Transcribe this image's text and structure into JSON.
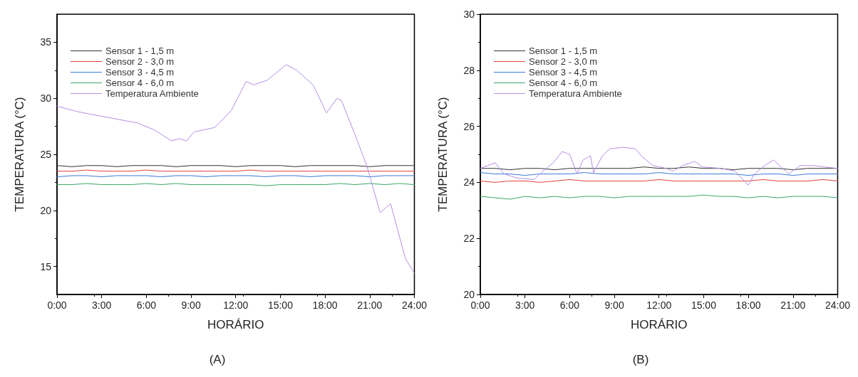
{
  "chart_data": [
    {
      "type": "line",
      "xlabel": "HORÁRIO",
      "ylabel": "TEMPERATURA (°C)",
      "annotations": [
        "(A)"
      ],
      "xlim": [
        0,
        24
      ],
      "ylim": [
        12.5,
        37.5
      ],
      "yticks": [
        15,
        20,
        25,
        30,
        35
      ],
      "xticks": [
        {
          "value": 0,
          "label": "0:00"
        },
        {
          "value": 3,
          "label": "3:00"
        },
        {
          "value": 6,
          "label": "6:00"
        },
        {
          "value": 9,
          "label": "9:00"
        },
        {
          "value": 12,
          "label": "12:00"
        },
        {
          "value": 15,
          "label": "15:00"
        },
        {
          "value": 18,
          "label": "18:00"
        },
        {
          "value": 21,
          "label": "21:00"
        },
        {
          "value": 24,
          "label": "24:00"
        }
      ],
      "grid": false,
      "legend": "top left",
      "marker": "none",
      "line_style": "solid",
      "x": [
        0,
        1,
        2,
        3,
        4,
        5,
        6,
        7,
        8,
        9,
        10,
        11,
        12,
        13,
        14,
        15,
        16,
        17,
        18,
        19,
        20,
        21,
        22,
        23,
        24
      ],
      "series": [
        {
          "name": "Sensor 1 - 1,5 m",
          "color": "#333333",
          "values": [
            24.0,
            23.9,
            24.0,
            24.0,
            23.9,
            24.0,
            24.0,
            24.0,
            23.9,
            24.0,
            24.0,
            24.0,
            23.9,
            24.0,
            24.0,
            24.0,
            23.9,
            24.0,
            24.0,
            24.0,
            24.0,
            23.9,
            24.0,
            24.0,
            24.0
          ]
        },
        {
          "name": "Sensor 2 - 3,0 m",
          "color": "#e0413c",
          "values": [
            23.5,
            23.5,
            23.6,
            23.5,
            23.5,
            23.5,
            23.6,
            23.5,
            23.5,
            23.5,
            23.5,
            23.5,
            23.5,
            23.6,
            23.5,
            23.5,
            23.5,
            23.5,
            23.5,
            23.5,
            23.5,
            23.5,
            23.5,
            23.5,
            23.5
          ]
        },
        {
          "name": "Sensor 3 - 4,5 m",
          "color": "#3b78d8",
          "values": [
            23.0,
            23.1,
            23.1,
            23.0,
            23.1,
            23.1,
            23.1,
            23.0,
            23.1,
            23.1,
            23.0,
            23.1,
            23.1,
            23.1,
            23.0,
            23.1,
            23.1,
            23.0,
            23.1,
            23.1,
            23.1,
            23.0,
            23.1,
            23.1,
            23.1
          ]
        },
        {
          "name": "Sensor 4 - 6,0 m",
          "color": "#3aa66a",
          "values": [
            22.3,
            22.3,
            22.4,
            22.3,
            22.3,
            22.3,
            22.4,
            22.3,
            22.4,
            22.3,
            22.3,
            22.3,
            22.3,
            22.3,
            22.2,
            22.3,
            22.3,
            22.3,
            22.3,
            22.4,
            22.3,
            22.4,
            22.3,
            22.4,
            22.3
          ]
        },
        {
          "name": "Temperatura Ambiente",
          "color": "#b48ee0",
          "x": [
            0,
            1.4,
            5.4,
            6.5,
            7.7,
            8.2,
            8.7,
            9.2,
            10.6,
            11.7,
            12.7,
            13.2,
            14.1,
            15.4,
            16.1,
            17.2,
            18.1,
            18.8,
            19.1,
            20.0,
            20.8,
            21.1,
            21.7,
            22.4,
            23.4,
            24
          ],
          "values": [
            29.3,
            28.8,
            27.8,
            27.2,
            26.2,
            26.4,
            26.2,
            27.0,
            27.4,
            28.9,
            31.5,
            31.2,
            31.6,
            33.0,
            32.5,
            31.2,
            28.7,
            30.0,
            29.8,
            26.8,
            24.0,
            22.6,
            19.8,
            20.6,
            15.7,
            14.4
          ]
        }
      ]
    },
    {
      "type": "line",
      "xlabel": "HORÁRIO",
      "ylabel": "TEMPERATURA (°C)",
      "annotations": [
        "(B)"
      ],
      "xlim": [
        0,
        24
      ],
      "ylim": [
        20,
        30
      ],
      "yticks": [
        20,
        22,
        24,
        26,
        28,
        30
      ],
      "xticks": [
        {
          "value": 0,
          "label": "0:00"
        },
        {
          "value": 3,
          "label": "3:00"
        },
        {
          "value": 6,
          "label": "6:00"
        },
        {
          "value": 9,
          "label": "9:00"
        },
        {
          "value": 12,
          "label": "12:00"
        },
        {
          "value": 15,
          "label": "15:00"
        },
        {
          "value": 18,
          "label": "18:00"
        },
        {
          "value": 21,
          "label": "21:00"
        },
        {
          "value": 24,
          "label": "24:00"
        }
      ],
      "grid": false,
      "legend": "top left",
      "marker": "none",
      "line_style": "solid",
      "x": [
        0,
        1,
        2,
        3,
        4,
        5,
        6,
        7,
        8,
        9,
        10,
        11,
        12,
        13,
        14,
        15,
        16,
        17,
        18,
        19,
        20,
        21,
        22,
        23,
        24
      ],
      "series": [
        {
          "name": "Sensor 1 - 1,5 m",
          "color": "#333333",
          "values": [
            24.5,
            24.5,
            24.45,
            24.5,
            24.5,
            24.45,
            24.5,
            24.5,
            24.5,
            24.5,
            24.5,
            24.55,
            24.5,
            24.5,
            24.55,
            24.5,
            24.5,
            24.45,
            24.5,
            24.5,
            24.5,
            24.45,
            24.5,
            24.5,
            24.5
          ]
        },
        {
          "name": "Sensor 2 - 3,0 m",
          "color": "#e0413c",
          "values": [
            24.05,
            24.0,
            24.05,
            24.05,
            24.0,
            24.05,
            24.1,
            24.05,
            24.05,
            24.05,
            24.05,
            24.05,
            24.1,
            24.05,
            24.05,
            24.05,
            24.05,
            24.05,
            24.05,
            24.1,
            24.05,
            24.05,
            24.05,
            24.1,
            24.05
          ]
        },
        {
          "name": "Sensor 3 - 4,5 m",
          "color": "#3b78d8",
          "values": [
            24.35,
            24.3,
            24.3,
            24.25,
            24.3,
            24.3,
            24.3,
            24.35,
            24.3,
            24.3,
            24.3,
            24.3,
            24.35,
            24.3,
            24.3,
            24.3,
            24.3,
            24.3,
            24.25,
            24.3,
            24.3,
            24.25,
            24.3,
            24.3,
            24.3
          ]
        },
        {
          "name": "Sensor 4 - 6,0 m",
          "color": "#3aa66a",
          "values": [
            23.5,
            23.45,
            23.4,
            23.5,
            23.45,
            23.5,
            23.45,
            23.5,
            23.5,
            23.45,
            23.5,
            23.5,
            23.5,
            23.5,
            23.5,
            23.55,
            23.5,
            23.5,
            23.45,
            23.5,
            23.45,
            23.5,
            23.5,
            23.5,
            23.45
          ]
        },
        {
          "name": "Temperatura Ambiente",
          "color": "#b48ee0",
          "x": [
            0,
            0.5,
            1.0,
            1.6,
            2.5,
            3.6,
            4.2,
            4.9,
            5.5,
            6.0,
            6.5,
            6.9,
            7.4,
            7.6,
            8.2,
            8.7,
            9.6,
            10.4,
            10.9,
            11.6,
            12.5,
            12.9,
            13.6,
            14.4,
            14.9,
            16.2,
            17.1,
            18.0,
            18.4,
            19.1,
            19.7,
            20.2,
            20.7,
            21.5,
            22.4,
            23.1,
            24
          ],
          "values": [
            24.5,
            24.6,
            24.7,
            24.3,
            24.15,
            24.1,
            24.4,
            24.7,
            25.1,
            25.0,
            24.3,
            24.8,
            24.95,
            24.35,
            24.95,
            25.2,
            25.25,
            25.2,
            24.9,
            24.6,
            24.5,
            24.4,
            24.6,
            24.75,
            24.55,
            24.5,
            24.4,
            23.9,
            24.3,
            24.6,
            24.8,
            24.55,
            24.3,
            24.6,
            24.6,
            24.55,
            24.5
          ]
        }
      ]
    }
  ]
}
